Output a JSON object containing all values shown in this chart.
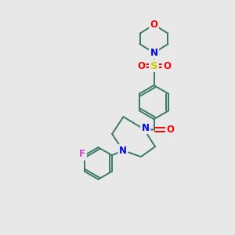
{
  "bg_color": "#e8e8e8",
  "bond_color": "#3a7a65",
  "bond_width": 1.4,
  "atom_colors": {
    "O": "#ff0000",
    "N": "#0000ff",
    "S": "#cccc00",
    "F": "#cc44cc",
    "C": "#3a7a65"
  },
  "font_size": 8.5,
  "dbl_sep": 0.09
}
